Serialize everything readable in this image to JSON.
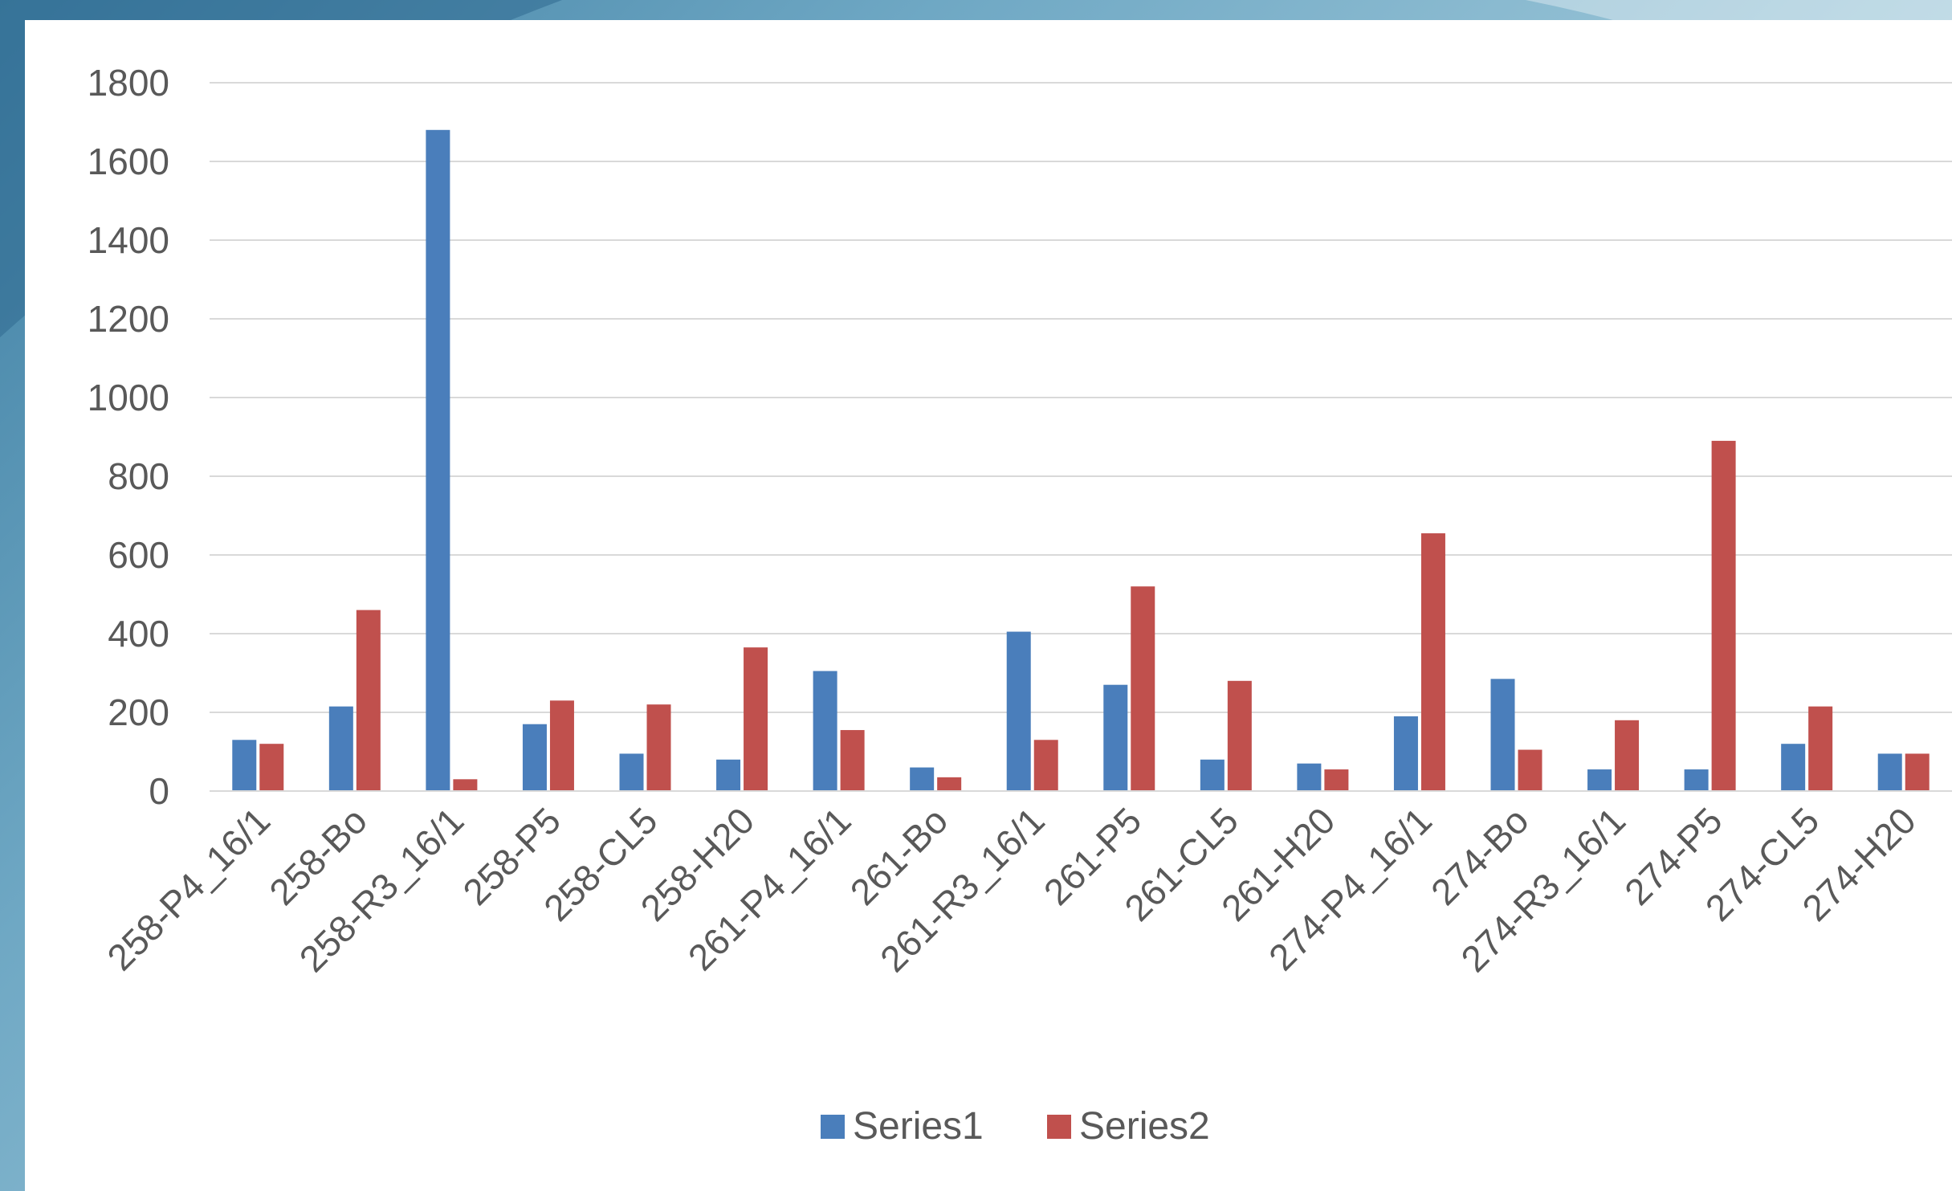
{
  "chart_data": {
    "type": "bar",
    "categories": [
      "258-P4_16/1",
      "258-Bo",
      "258-R3_16/1",
      "258-P5",
      "258-CL5",
      "258-H20",
      "261-P4_16/1",
      "261-Bo",
      "261-R3_16/1",
      "261-P5",
      "261-CL5",
      "261-H20",
      "274-P4_16/1",
      "274-Bo",
      "274-R3_16/1",
      "274-P5",
      "274-CL5",
      "274-H20"
    ],
    "series": [
      {
        "name": "Series1",
        "color": "#4a7ebb",
        "values": [
          130,
          215,
          1680,
          170,
          95,
          80,
          305,
          60,
          405,
          270,
          80,
          70,
          190,
          285,
          55,
          55,
          120,
          95
        ]
      },
      {
        "name": "Series2",
        "color": "#c0504d",
        "values": [
          120,
          460,
          30,
          230,
          220,
          365,
          155,
          35,
          130,
          520,
          280,
          55,
          655,
          105,
          180,
          890,
          215,
          95
        ]
      }
    ],
    "yticks": [
      "0",
      "200",
      "400",
      "600",
      "800",
      "1000",
      "1200",
      "1400",
      "1600",
      "1800"
    ],
    "ylim": [
      0,
      1800
    ],
    "grid": true,
    "legend_position": "bottom"
  }
}
